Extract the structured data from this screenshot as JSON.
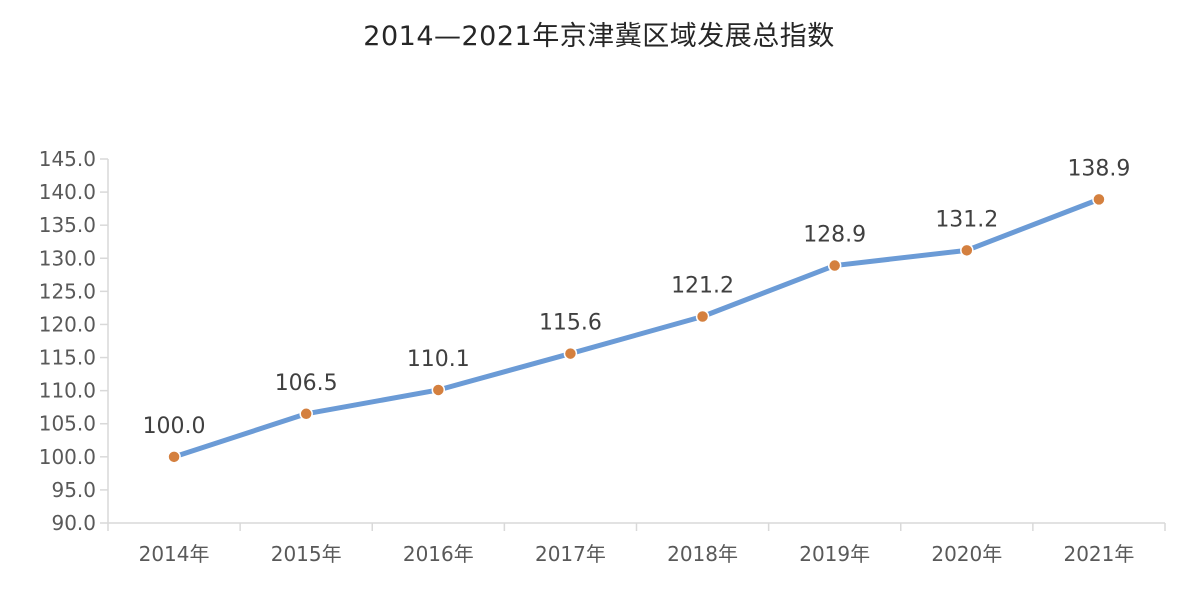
{
  "chart_data": {
    "type": "line",
    "title": "2014—2021年京津冀区域发展总指数",
    "categories": [
      "2014年",
      "2015年",
      "2016年",
      "2017年",
      "2018年",
      "2019年",
      "2020年",
      "2021年"
    ],
    "series": [
      {
        "values": [
          100.0,
          106.5,
          110.1,
          115.6,
          121.2,
          128.9,
          131.2,
          138.9
        ],
        "labels": [
          "100.0",
          "106.5",
          "110.1",
          "115.6",
          "121.2",
          "128.9",
          "131.2",
          "138.9"
        ]
      }
    ],
    "ylim": [
      90,
      145
    ],
    "yticks": [
      "90.0",
      "95.0",
      "100.0",
      "105.0",
      "110.0",
      "115.0",
      "120.0",
      "125.0",
      "130.0",
      "135.0",
      "140.0",
      "145.0"
    ],
    "grid": false,
    "legend": "none",
    "colors": {
      "line": "#6b9bd6",
      "marker": "#d4803f",
      "axis": "#d9d9d9"
    }
  }
}
